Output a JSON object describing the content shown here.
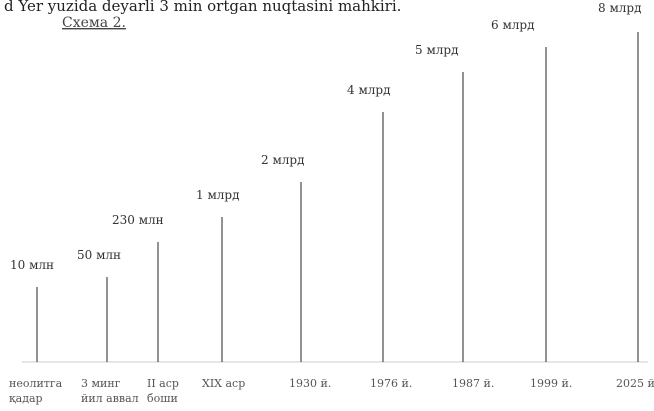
{
  "header_text": "d Yer yuzida deyarli 3 min    ortgan nuqtasini mahkiri.",
  "scheme_label": "Схема 2.",
  "chart_data": {
    "type": "bar",
    "title": "",
    "xlabel": "",
    "ylabel": "",
    "grid": false,
    "legend": "none",
    "categories": [
      [
        "неолитга",
        "қадар"
      ],
      [
        "3 минг",
        "йил аввал"
      ],
      [
        "II аср",
        "боши"
      ],
      [
        "XIX аср"
      ],
      [
        "1930 й."
      ],
      [
        "1976 й."
      ],
      [
        "1987 й."
      ],
      [
        "1999 й."
      ],
      [
        "2025 й."
      ]
    ],
    "value_labels": [
      "10 млн",
      "50 млн",
      "230 млн",
      "1 млрд",
      "2 млрд",
      "4 млрд",
      "5 млрд",
      "6 млрд",
      "8 млрд"
    ],
    "series": [
      {
        "values": [
          10000000,
          50000000,
          230000000,
          1000000000,
          2000000000,
          4000000000,
          5000000000,
          6000000000,
          8000000000
        ]
      }
    ]
  }
}
